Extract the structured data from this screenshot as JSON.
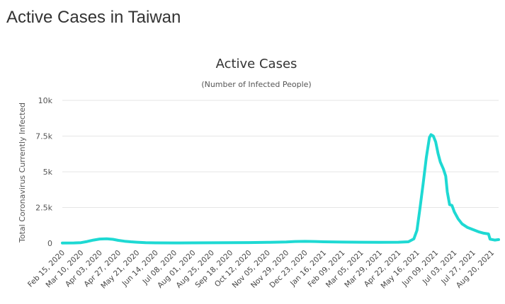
{
  "page": {
    "heading": "Active Cases in Taiwan"
  },
  "chart_data": {
    "type": "line",
    "title": "Active Cases",
    "subtitle": "(Number of Infected People)",
    "ylabel": "Total Coronavirus Currently Infected",
    "xlabel": "",
    "ylim": [
      0,
      10000
    ],
    "yticks": [
      0,
      2500,
      5000,
      7500,
      10000
    ],
    "ytick_labels": [
      "0",
      "2.5k",
      "5k",
      "7.5k",
      "10k"
    ],
    "xtick_labels": [
      "Feb 15, 2020",
      "Mar 10, 2020",
      "Apr 03, 2020",
      "Apr 27, 2020",
      "May 21, 2020",
      "Jun 14, 2020",
      "Jul 08, 2020",
      "Aug 01, 2020",
      "Aug 25, 2020",
      "Sep 18, 2020",
      "Oct 12, 2020",
      "Nov 05, 2020",
      "Nov 29, 2020",
      "Dec 23, 2020",
      "Jan 16, 2021",
      "Feb 09, 2021",
      "Mar 05, 2021",
      "Mar 29, 2021",
      "Apr 22, 2021",
      "May 16, 2021",
      "Jun 09, 2021",
      "Jul 03, 2021",
      "Jul 27, 2021",
      "Aug 20, 2021"
    ],
    "grid": true,
    "legend": "none",
    "color": "#1ED9D3",
    "series": [
      {
        "name": "",
        "points": [
          [
            "Feb 15, 2020",
            15
          ],
          [
            "Mar 01, 2020",
            20
          ],
          [
            "Mar 10, 2020",
            40
          ],
          [
            "Mar 18, 2020",
            120
          ],
          [
            "Mar 26, 2020",
            220
          ],
          [
            "Apr 03, 2020",
            290
          ],
          [
            "Apr 12, 2020",
            310
          ],
          [
            "Apr 20, 2020",
            270
          ],
          [
            "Apr 27, 2020",
            200
          ],
          [
            "May 05, 2020",
            140
          ],
          [
            "May 13, 2020",
            100
          ],
          [
            "May 21, 2020",
            70
          ],
          [
            "Jun 01, 2020",
            40
          ],
          [
            "Jun 14, 2020",
            25
          ],
          [
            "Jul 08, 2020",
            20
          ],
          [
            "Aug 01, 2020",
            25
          ],
          [
            "Aug 25, 2020",
            30
          ],
          [
            "Sep 18, 2020",
            35
          ],
          [
            "Oct 12, 2020",
            45
          ],
          [
            "Nov 05, 2020",
            60
          ],
          [
            "Nov 29, 2020",
            90
          ],
          [
            "Dec 10, 2020",
            120
          ],
          [
            "Dec 23, 2020",
            130
          ],
          [
            "Jan 05, 2021",
            120
          ],
          [
            "Jan 16, 2021",
            100
          ],
          [
            "Feb 09, 2021",
            80
          ],
          [
            "Mar 05, 2021",
            70
          ],
          [
            "Mar 29, 2021",
            60
          ],
          [
            "Apr 22, 2021",
            70
          ],
          [
            "May 05, 2021",
            100
          ],
          [
            "May 12, 2021",
            300
          ],
          [
            "May 16, 2021",
            900
          ],
          [
            "May 20, 2021",
            2500
          ],
          [
            "May 24, 2021",
            4200
          ],
          [
            "May 28, 2021",
            6000
          ],
          [
            "Jun 01, 2021",
            7400
          ],
          [
            "Jun 03, 2021",
            7600
          ],
          [
            "Jun 06, 2021",
            7500
          ],
          [
            "Jun 09, 2021",
            7100
          ],
          [
            "Jun 12, 2021",
            6300
          ],
          [
            "Jun 15, 2021",
            5700
          ],
          [
            "Jun 19, 2021",
            5200
          ],
          [
            "Jun 22, 2021",
            4700
          ],
          [
            "Jun 24, 2021",
            3600
          ],
          [
            "Jun 27, 2021",
            2700
          ],
          [
            "Jun 30, 2021",
            2650
          ],
          [
            "Jul 03, 2021",
            2200
          ],
          [
            "Jul 08, 2021",
            1700
          ],
          [
            "Jul 13, 2021",
            1350
          ],
          [
            "Jul 20, 2021",
            1100
          ],
          [
            "Jul 27, 2021",
            950
          ],
          [
            "Aug 03, 2021",
            800
          ],
          [
            "Aug 10, 2021",
            700
          ],
          [
            "Aug 16, 2021",
            650
          ],
          [
            "Aug 18, 2021",
            280
          ],
          [
            "Aug 24, 2021",
            220
          ],
          [
            "Aug 29, 2021",
            250
          ]
        ]
      }
    ]
  }
}
